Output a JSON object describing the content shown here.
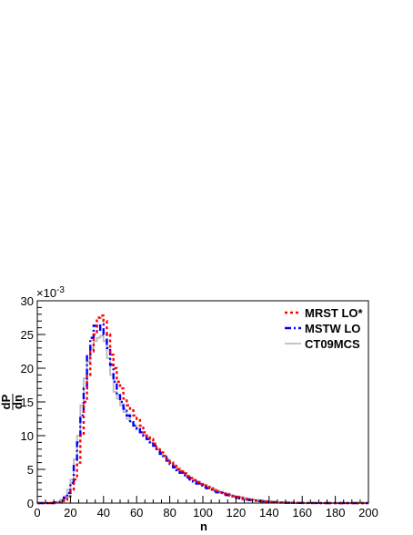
{
  "chart_data": {
    "type": "line",
    "step": true,
    "xlabel": "n",
    "ylabel_num": "dP",
    "ylabel_den": "dn",
    "y_multiplier": "×10",
    "y_multiplier_exp": "-3",
    "xlim": [
      0,
      200
    ],
    "ylim": [
      0,
      30
    ],
    "x_ticks": [
      "0",
      "20",
      "40",
      "60",
      "80",
      "100",
      "120",
      "140",
      "160",
      "180",
      "200"
    ],
    "y_ticks": [
      "0",
      "5",
      "10",
      "15",
      "20",
      "25",
      "30"
    ],
    "bin_width": 2,
    "grid": false,
    "legend_position": "top-right",
    "series": [
      {
        "name": "MRST LO*",
        "color": "#ff0000",
        "dash": "dotted",
        "x": [
          10,
          12,
          14,
          16,
          18,
          20,
          22,
          24,
          26,
          28,
          30,
          32,
          34,
          36,
          38,
          40,
          42,
          44,
          46,
          48,
          50,
          52,
          54,
          56,
          58,
          60,
          62,
          64,
          66,
          68,
          70,
          72,
          74,
          76,
          78,
          80,
          82,
          84,
          86,
          88,
          90,
          92,
          94,
          96,
          98,
          100,
          102,
          104,
          106,
          108,
          110,
          112,
          114,
          116,
          118,
          120,
          122,
          124,
          126,
          128,
          130,
          132,
          134,
          136,
          138,
          140,
          142,
          144,
          146,
          148,
          150,
          152,
          154,
          156,
          158,
          160,
          165,
          170,
          180,
          190
        ],
        "y": [
          0.1,
          0.1,
          0.3,
          0.5,
          1.0,
          2.0,
          3.5,
          6.0,
          10.0,
          15.0,
          19.0,
          22.5,
          25.0,
          27.5,
          27.8,
          27.0,
          25.0,
          22.0,
          20.0,
          18.0,
          17.0,
          15.5,
          14.5,
          14.0,
          13.0,
          12.5,
          11.5,
          10.5,
          10.0,
          9.5,
          8.8,
          8.2,
          7.5,
          7.0,
          6.5,
          6.0,
          5.5,
          5.0,
          4.7,
          4.4,
          4.0,
          3.7,
          3.4,
          3.1,
          2.8,
          2.6,
          2.4,
          2.2,
          2.0,
          1.8,
          1.6,
          1.4,
          1.3,
          1.1,
          1.0,
          0.9,
          0.8,
          0.7,
          0.6,
          0.5,
          0.4,
          0.35,
          0.3,
          0.25,
          0.2,
          0.18,
          0.15,
          0.12,
          0.1,
          0.08,
          0.06,
          0.05,
          0.04,
          0.03,
          0.02,
          0.02,
          0.01,
          0.01,
          0.0,
          0.0
        ]
      },
      {
        "name": "MSTW LO",
        "color": "#0000ff",
        "dash": "dashdot",
        "x": [
          10,
          12,
          14,
          16,
          18,
          20,
          22,
          24,
          26,
          28,
          30,
          32,
          34,
          36,
          38,
          40,
          42,
          44,
          46,
          48,
          50,
          52,
          54,
          56,
          58,
          60,
          62,
          64,
          66,
          68,
          70,
          72,
          74,
          76,
          78,
          80,
          82,
          84,
          86,
          88,
          90,
          92,
          94,
          96,
          98,
          100,
          102,
          104,
          106,
          108,
          110,
          112,
          114,
          116,
          118,
          120,
          122,
          124,
          126,
          128,
          130,
          132,
          134,
          136,
          138,
          140,
          142,
          144,
          146,
          148,
          150,
          152,
          154,
          156,
          158,
          160,
          165,
          170,
          180,
          190
        ],
        "y": [
          0.1,
          0.2,
          0.4,
          0.8,
          1.5,
          3.0,
          5.5,
          9.0,
          13.0,
          17.0,
          22.0,
          24.5,
          26.3,
          25.5,
          26.5,
          25.0,
          23.0,
          20.5,
          18.0,
          16.0,
          15.0,
          14.0,
          13.0,
          12.0,
          11.5,
          11.0,
          10.5,
          10.0,
          9.5,
          9.0,
          8.5,
          8.0,
          7.3,
          6.8,
          6.3,
          5.8,
          5.3,
          4.9,
          4.5,
          4.1,
          3.8,
          3.5,
          3.2,
          2.9,
          2.6,
          2.4,
          2.2,
          2.0,
          1.8,
          1.6,
          1.5,
          1.3,
          1.2,
          1.0,
          0.9,
          0.8,
          0.7,
          0.6,
          0.5,
          0.45,
          0.4,
          0.35,
          0.3,
          0.25,
          0.2,
          0.16,
          0.13,
          0.1,
          0.08,
          0.06,
          0.05,
          0.04,
          0.03,
          0.02,
          0.02,
          0.01,
          0.01,
          0.0,
          0.0,
          0.0
        ]
      },
      {
        "name": "CT09MCS",
        "color": "#bbbbbb",
        "dash": "solid",
        "x": [
          10,
          12,
          14,
          16,
          18,
          20,
          22,
          24,
          26,
          28,
          30,
          32,
          34,
          36,
          38,
          40,
          42,
          44,
          46,
          48,
          50,
          52,
          54,
          56,
          58,
          60,
          62,
          64,
          66,
          68,
          70,
          72,
          74,
          76,
          78,
          80,
          82,
          84,
          86,
          88,
          90,
          92,
          94,
          96,
          98,
          100,
          102,
          104,
          106,
          108,
          110,
          112,
          114,
          116,
          118,
          120,
          122,
          124,
          126,
          128,
          130,
          132,
          134,
          136,
          138,
          140,
          142,
          144,
          146,
          148,
          150,
          152,
          154,
          156,
          158,
          160,
          165,
          170,
          180,
          190
        ],
        "y": [
          0.1,
          0.2,
          0.5,
          1.0,
          2.0,
          3.5,
          6.5,
          10.0,
          14.5,
          18.5,
          21.0,
          23.0,
          24.0,
          24.5,
          24.8,
          24.0,
          21.5,
          19.0,
          16.5,
          15.5,
          14.5,
          13.5,
          12.5,
          12.0,
          11.5,
          11.0,
          10.5,
          10.0,
          9.5,
          9.0,
          8.5,
          8.0,
          7.5,
          7.0,
          6.5,
          6.0,
          5.6,
          5.2,
          4.8,
          4.5,
          4.1,
          3.8,
          3.5,
          3.2,
          2.9,
          2.7,
          2.5,
          2.3,
          2.1,
          1.9,
          1.7,
          1.5,
          1.4,
          1.2,
          1.1,
          1.0,
          0.9,
          0.8,
          0.7,
          0.6,
          0.5,
          0.45,
          0.4,
          0.35,
          0.3,
          0.25,
          0.2,
          0.16,
          0.13,
          0.1,
          0.08,
          0.06,
          0.05,
          0.04,
          0.03,
          0.02,
          0.01,
          0.01,
          0.0,
          0.0
        ]
      }
    ]
  }
}
